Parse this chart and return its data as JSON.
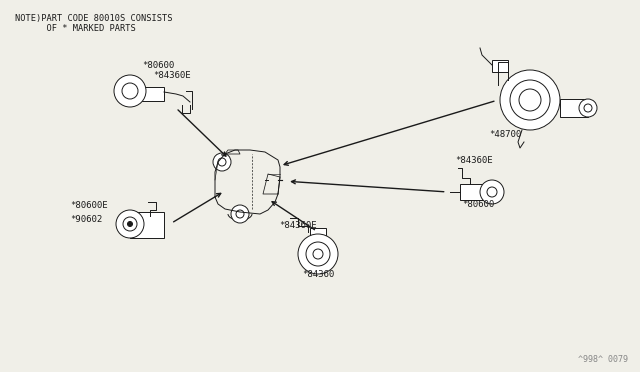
{
  "bg_color": "#f0efe8",
  "line_color": "#1a1a1a",
  "note_line1": "NOTE)PART CODE 80010S CONSISTS",
  "note_line2": "      OF * MARKED PARTS",
  "watermark": "^998^ 0079",
  "labels": {
    "top_left_1": "*80600",
    "top_left_2": "*84360E",
    "top_right": "*48700",
    "mid_right_1": "*84360E",
    "mid_right_2": "*80600",
    "bot_left_1": "*80600E",
    "bot_left_2": "*90602",
    "bot_mid_1": "*84360E",
    "bot_mid_2": "*84360"
  },
  "figsize": [
    6.4,
    3.72
  ],
  "dpi": 100
}
